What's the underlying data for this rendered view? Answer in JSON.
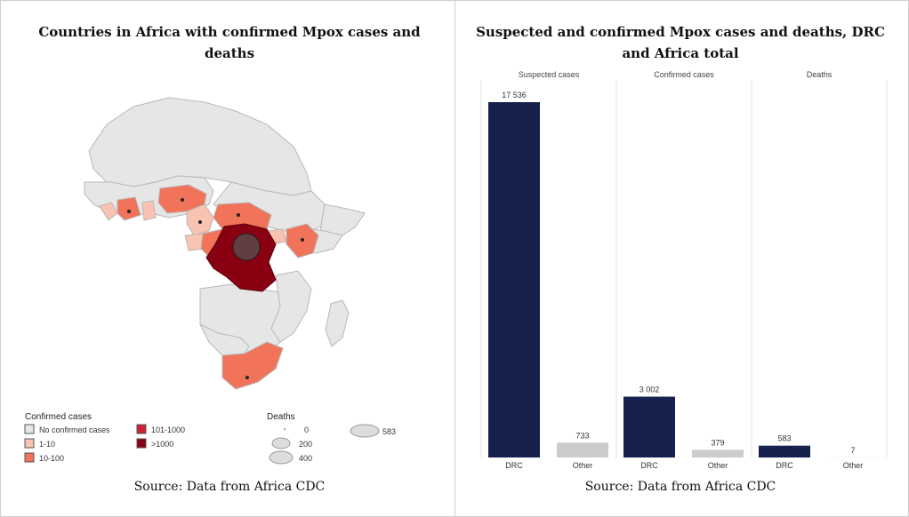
{
  "left_panel": {
    "title": "Countries in Africa with confirmed Mpox cases and deaths",
    "source": "Source: Data from Africa CDC",
    "legend": {
      "cases_title": "Confirmed cases",
      "cases_items": [
        {
          "label": "No confirmed cases",
          "color": "#e6e6e6"
        },
        {
          "label": "1-10",
          "color": "#f8c3b0"
        },
        {
          "label": "10-100",
          "color": "#f0735a"
        },
        {
          "label": "101-1000",
          "color": "#cc2233"
        },
        {
          "label": ">1000",
          "color": "#880011"
        }
      ],
      "deaths_title": "Deaths",
      "deaths_items": [
        "0",
        "200",
        "400",
        "583"
      ]
    }
  },
  "right_panel": {
    "title": "Suspected and confirmed Mpox cases and deaths, DRC and Africa total",
    "source": "Source: Data from Africa CDC"
  },
  "chart_data": {
    "type": "bar",
    "facets": [
      "Suspected cases",
      "Confirmed cases",
      "Deaths"
    ],
    "categories": [
      "DRC",
      "Other"
    ],
    "values": [
      [
        17536,
        733
      ],
      [
        3002,
        379
      ],
      [
        583,
        7
      ]
    ],
    "value_labels": [
      [
        "17 536",
        "733"
      ],
      [
        "3 002",
        "379"
      ],
      [
        "583",
        "7"
      ]
    ],
    "colors": {
      "DRC": "#16224d",
      "Other": "#cccccc"
    },
    "ylim": [
      0,
      17536
    ]
  }
}
